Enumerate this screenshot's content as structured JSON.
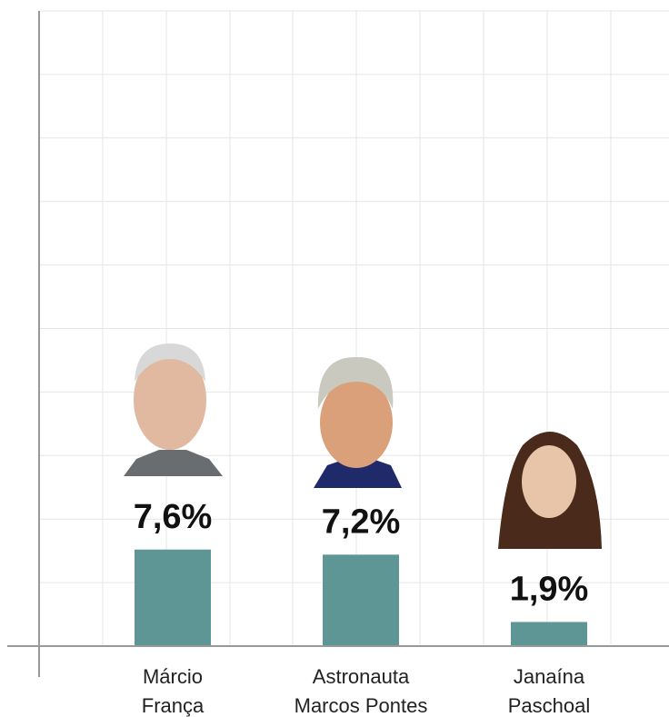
{
  "chart_data": {
    "type": "bar",
    "categories": [
      [
        "Márcio",
        "França"
      ],
      [
        "Astronauta",
        "Marcos Pontes"
      ],
      [
        "Janaína",
        "Paschoal"
      ]
    ],
    "values": [
      7.6,
      7.2,
      1.9
    ],
    "value_labels": [
      "7,6%",
      "7,2%",
      "1,9%"
    ],
    "color": "#5e9696",
    "ylim": [
      0,
      50
    ],
    "yticks": [
      0,
      5,
      10,
      15,
      20,
      25,
      30,
      35,
      40,
      45,
      50
    ],
    "grid": true
  }
}
